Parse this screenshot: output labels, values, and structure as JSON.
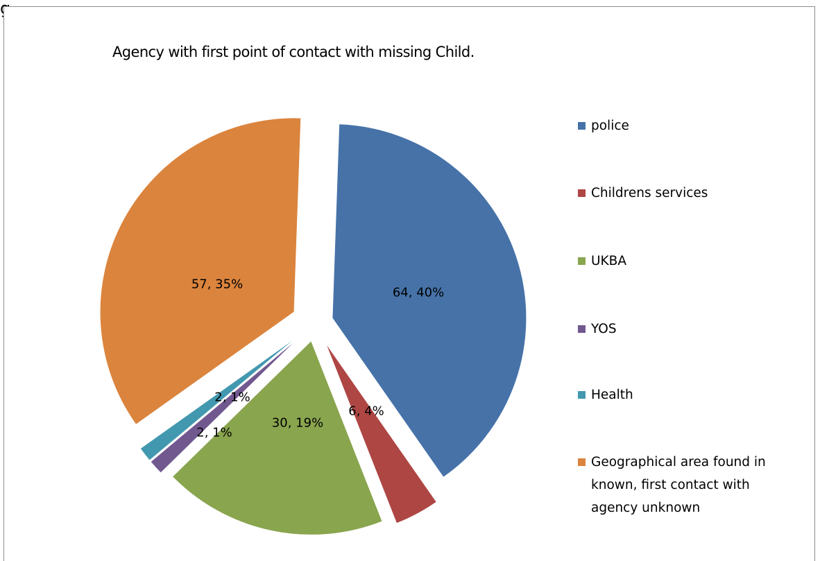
{
  "top_text": "g",
  "chart_data": {
    "type": "pie",
    "title": "Agency with first point of contact with missing Child.",
    "legend_position": "right",
    "exploded": true,
    "slices": [
      {
        "name": "police",
        "value": 64,
        "percent": "40%",
        "label": "64, 40%",
        "color": "#4672a8"
      },
      {
        "name": "Childrens services",
        "value": 6,
        "percent": "4%",
        "label": "6, 4%",
        "color": "#ae4644"
      },
      {
        "name": "UKBA",
        "value": 30,
        "percent": "19%",
        "label": "30, 19%",
        "color": "#89a54e"
      },
      {
        "name": "YOS",
        "value": 2,
        "percent": "1%",
        "label": "2, 1%",
        "color": "#71588f"
      },
      {
        "name": "Health",
        "value": 2,
        "percent": "1%",
        "label": "2, 1%",
        "color": "#4298af"
      },
      {
        "name": "Geographical area found in known, first contact with agency unknown",
        "value": 57,
        "percent": "35%",
        "label": "57, 35%",
        "color": "#db843d"
      }
    ],
    "legend_lines": [
      [
        "police"
      ],
      [
        "Childrens services"
      ],
      [
        "UKBA"
      ],
      [
        "YOS"
      ],
      [
        "Health"
      ],
      [
        "Geographical area found in",
        "known, first contact with",
        "agency unknown"
      ]
    ]
  }
}
